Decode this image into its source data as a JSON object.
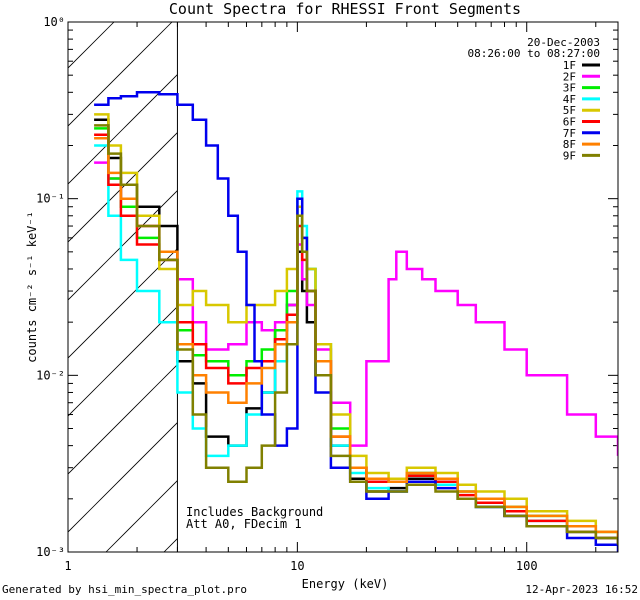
{
  "chart_data": {
    "type": "line",
    "title": "Count Spectra for RHESSI Front Segments",
    "xlabel": "Energy (keV)",
    "ylabel": "counts cm⁻² s⁻¹ keV⁻¹",
    "xscale": "log",
    "yscale": "log",
    "xlim": [
      1,
      250
    ],
    "ylim": [
      0.001,
      1
    ],
    "x_ticks": [
      {
        "value": 1,
        "label": "1"
      },
      {
        "value": 10,
        "label": "10"
      },
      {
        "value": 100,
        "label": "100"
      }
    ],
    "y_ticks": [
      {
        "value": 0.001,
        "label": "10⁻³"
      },
      {
        "value": 0.01,
        "label": "10⁻²"
      },
      {
        "value": 0.1,
        "label": "10⁻¹"
      },
      {
        "value": 1,
        "label": "10⁰"
      }
    ],
    "date": "20-Dec-2003",
    "time_range": "08:26:00 to 08:27:00",
    "excluded_region": {
      "x_max": 3
    },
    "annotations": [
      "Includes Background",
      "Att A0, FDecim 1"
    ],
    "series": [
      {
        "name": "1F",
        "color": "#000000",
        "x": [
          1.3,
          1.5,
          1.7,
          2,
          2.5,
          3,
          3.5,
          4,
          5,
          6,
          7,
          8,
          9,
          10,
          10.5,
          11,
          12,
          14,
          17,
          20,
          25,
          30,
          40,
          50,
          60,
          80,
          100,
          150,
          200,
          250
        ],
        "y": [
          0.28,
          0.17,
          0.12,
          0.09,
          0.07,
          0.012,
          0.009,
          0.0045,
          0.004,
          0.0065,
          0.008,
          0.018,
          0.025,
          0.05,
          0.03,
          0.02,
          0.01,
          0.004,
          0.0026,
          0.0022,
          0.0023,
          0.0026,
          0.0024,
          0.002,
          0.0018,
          0.0016,
          0.0014,
          0.0013,
          0.0012,
          0.0011
        ]
      },
      {
        "name": "2F",
        "color": "#ff00ff",
        "x": [
          1.3,
          1.5,
          1.7,
          2,
          2.5,
          3,
          3.5,
          4,
          5,
          6,
          7,
          8,
          9,
          10,
          10.5,
          11,
          12,
          14,
          17,
          20,
          25,
          27,
          30,
          35,
          40,
          50,
          60,
          80,
          100,
          150,
          200,
          250
        ],
        "y": [
          0.16,
          0.13,
          0.1,
          0.07,
          0.045,
          0.035,
          0.02,
          0.014,
          0.015,
          0.02,
          0.018,
          0.02,
          0.025,
          0.055,
          0.035,
          0.025,
          0.014,
          0.007,
          0.004,
          0.012,
          0.035,
          0.05,
          0.04,
          0.035,
          0.03,
          0.025,
          0.02,
          0.014,
          0.01,
          0.006,
          0.0045,
          0.0035
        ]
      },
      {
        "name": "3F",
        "color": "#00ee00",
        "x": [
          1.3,
          1.5,
          1.7,
          2,
          2.5,
          3,
          3.5,
          4,
          5,
          6,
          7,
          8,
          9,
          10,
          10.5,
          11,
          12,
          14,
          17,
          20,
          25,
          30,
          40,
          50,
          60,
          80,
          100,
          150,
          200,
          250
        ],
        "y": [
          0.25,
          0.13,
          0.09,
          0.06,
          0.045,
          0.018,
          0.013,
          0.012,
          0.01,
          0.012,
          0.014,
          0.018,
          0.03,
          0.09,
          0.06,
          0.04,
          0.015,
          0.005,
          0.003,
          0.0026,
          0.0025,
          0.0028,
          0.0026,
          0.0022,
          0.002,
          0.0018,
          0.0016,
          0.0014,
          0.0013,
          0.0012
        ]
      },
      {
        "name": "4F",
        "color": "#00ffff",
        "x": [
          1.3,
          1.5,
          1.7,
          2,
          2.5,
          3,
          3.5,
          4,
          5,
          6,
          7,
          8,
          9,
          10,
          10.5,
          11,
          12,
          14,
          17,
          20,
          25,
          30,
          40,
          50,
          60,
          80,
          100,
          150,
          200,
          250
        ],
        "y": [
          0.2,
          0.08,
          0.045,
          0.03,
          0.02,
          0.008,
          0.005,
          0.0035,
          0.004,
          0.006,
          0.008,
          0.012,
          0.02,
          0.11,
          0.07,
          0.04,
          0.012,
          0.004,
          0.0028,
          0.0023,
          0.0022,
          0.0025,
          0.0024,
          0.002,
          0.0018,
          0.0017,
          0.0015,
          0.0013,
          0.0012,
          0.0011
        ]
      },
      {
        "name": "5F",
        "color": "#d8c800",
        "x": [
          1.3,
          1.5,
          1.7,
          2,
          2.5,
          3,
          3.5,
          4,
          5,
          6,
          7,
          8,
          9,
          10,
          10.5,
          11,
          12,
          14,
          17,
          20,
          25,
          30,
          40,
          50,
          60,
          80,
          100,
          150,
          200,
          250
        ],
        "y": [
          0.3,
          0.2,
          0.14,
          0.08,
          0.04,
          0.025,
          0.03,
          0.025,
          0.02,
          0.025,
          0.025,
          0.03,
          0.04,
          0.09,
          0.06,
          0.04,
          0.015,
          0.006,
          0.0035,
          0.0028,
          0.0026,
          0.003,
          0.0028,
          0.0024,
          0.0022,
          0.002,
          0.0017,
          0.0015,
          0.0013,
          0.0012
        ]
      },
      {
        "name": "6F",
        "color": "#ff0000",
        "x": [
          1.3,
          1.5,
          1.7,
          2,
          2.5,
          3,
          3.5,
          4,
          5,
          6,
          7,
          8,
          9,
          10,
          10.5,
          11,
          12,
          14,
          17,
          20,
          25,
          30,
          40,
          50,
          60,
          80,
          100,
          150,
          200,
          250
        ],
        "y": [
          0.23,
          0.12,
          0.08,
          0.055,
          0.045,
          0.02,
          0.015,
          0.011,
          0.009,
          0.011,
          0.012,
          0.016,
          0.022,
          0.07,
          0.045,
          0.03,
          0.012,
          0.0045,
          0.003,
          0.0025,
          0.0025,
          0.0027,
          0.0025,
          0.0021,
          0.0019,
          0.0017,
          0.0015,
          0.0013,
          0.0012,
          0.0011
        ]
      },
      {
        "name": "7F",
        "color": "#0000ee",
        "x": [
          1.3,
          1.5,
          1.7,
          2,
          2.5,
          3,
          3.5,
          4,
          4.5,
          5,
          5.5,
          6,
          6.5,
          7,
          8,
          9,
          10,
          10.5,
          11,
          12,
          14,
          17,
          20,
          25,
          30,
          40,
          50,
          60,
          80,
          100,
          150,
          200,
          250
        ],
        "y": [
          0.34,
          0.37,
          0.38,
          0.4,
          0.39,
          0.34,
          0.28,
          0.2,
          0.13,
          0.08,
          0.05,
          0.025,
          0.012,
          0.006,
          0.004,
          0.005,
          0.1,
          0.06,
          0.03,
          0.008,
          0.003,
          0.0025,
          0.002,
          0.0022,
          0.0025,
          0.0023,
          0.002,
          0.0018,
          0.0016,
          0.0014,
          0.0012,
          0.0011,
          0.001
        ]
      },
      {
        "name": "8F",
        "color": "#ff8000",
        "x": [
          1.3,
          1.5,
          1.7,
          2,
          2.5,
          3,
          3.5,
          4,
          5,
          6,
          7,
          8,
          9,
          10,
          10.5,
          11,
          12,
          14,
          17,
          20,
          25,
          30,
          40,
          50,
          60,
          80,
          100,
          150,
          200,
          250
        ],
        "y": [
          0.22,
          0.14,
          0.1,
          0.07,
          0.05,
          0.015,
          0.01,
          0.008,
          0.007,
          0.009,
          0.011,
          0.015,
          0.02,
          0.08,
          0.05,
          0.03,
          0.012,
          0.0045,
          0.003,
          0.0026,
          0.0025,
          0.0028,
          0.0026,
          0.0022,
          0.002,
          0.0018,
          0.0016,
          0.0014,
          0.0013,
          0.0012
        ]
      },
      {
        "name": "9F",
        "color": "#808000",
        "x": [
          1.3,
          1.5,
          1.7,
          2,
          2.5,
          3,
          3.5,
          4,
          5,
          6,
          7,
          8,
          9,
          10,
          10.5,
          11,
          12,
          14,
          17,
          20,
          25,
          30,
          40,
          50,
          60,
          80,
          100,
          150,
          200,
          250
        ],
        "y": [
          0.26,
          0.18,
          0.12,
          0.07,
          0.045,
          0.014,
          0.006,
          0.003,
          0.0025,
          0.003,
          0.004,
          0.008,
          0.015,
          0.08,
          0.05,
          0.03,
          0.01,
          0.0035,
          0.0025,
          0.0022,
          0.0022,
          0.0024,
          0.0022,
          0.002,
          0.0018,
          0.0016,
          0.0014,
          0.0013,
          0.0012,
          0.0011
        ]
      }
    ]
  },
  "footer": {
    "generated_by": "Generated by hsi_min_spectra_plot.pro",
    "timestamp": "12-Apr-2023 16:52"
  }
}
